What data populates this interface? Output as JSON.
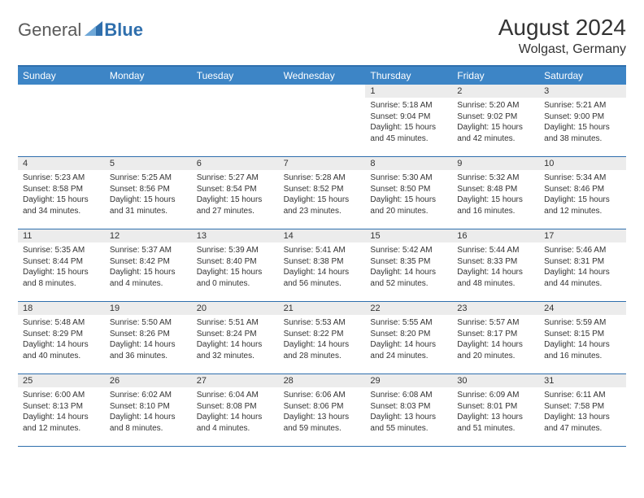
{
  "brand": {
    "general": "General",
    "blue": "Blue",
    "logo_color": "#2f6fad"
  },
  "title": "August 2024",
  "location": "Wolgast, Germany",
  "colors": {
    "header_bg": "#3d85c6",
    "header_text": "#ffffff",
    "border": "#2f6fad",
    "daynum_bg": "#ececec",
    "text": "#333333",
    "background": "#ffffff"
  },
  "day_labels": [
    "Sunday",
    "Monday",
    "Tuesday",
    "Wednesday",
    "Thursday",
    "Friday",
    "Saturday"
  ],
  "weeks": [
    [
      {
        "empty": true
      },
      {
        "empty": true
      },
      {
        "empty": true
      },
      {
        "empty": true
      },
      {
        "day": "1",
        "sunrise": "Sunrise: 5:18 AM",
        "sunset": "Sunset: 9:04 PM",
        "daylight": "Daylight: 15 hours and 45 minutes."
      },
      {
        "day": "2",
        "sunrise": "Sunrise: 5:20 AM",
        "sunset": "Sunset: 9:02 PM",
        "daylight": "Daylight: 15 hours and 42 minutes."
      },
      {
        "day": "3",
        "sunrise": "Sunrise: 5:21 AM",
        "sunset": "Sunset: 9:00 PM",
        "daylight": "Daylight: 15 hours and 38 minutes."
      }
    ],
    [
      {
        "day": "4",
        "sunrise": "Sunrise: 5:23 AM",
        "sunset": "Sunset: 8:58 PM",
        "daylight": "Daylight: 15 hours and 34 minutes."
      },
      {
        "day": "5",
        "sunrise": "Sunrise: 5:25 AM",
        "sunset": "Sunset: 8:56 PM",
        "daylight": "Daylight: 15 hours and 31 minutes."
      },
      {
        "day": "6",
        "sunrise": "Sunrise: 5:27 AM",
        "sunset": "Sunset: 8:54 PM",
        "daylight": "Daylight: 15 hours and 27 minutes."
      },
      {
        "day": "7",
        "sunrise": "Sunrise: 5:28 AM",
        "sunset": "Sunset: 8:52 PM",
        "daylight": "Daylight: 15 hours and 23 minutes."
      },
      {
        "day": "8",
        "sunrise": "Sunrise: 5:30 AM",
        "sunset": "Sunset: 8:50 PM",
        "daylight": "Daylight: 15 hours and 20 minutes."
      },
      {
        "day": "9",
        "sunrise": "Sunrise: 5:32 AM",
        "sunset": "Sunset: 8:48 PM",
        "daylight": "Daylight: 15 hours and 16 minutes."
      },
      {
        "day": "10",
        "sunrise": "Sunrise: 5:34 AM",
        "sunset": "Sunset: 8:46 PM",
        "daylight": "Daylight: 15 hours and 12 minutes."
      }
    ],
    [
      {
        "day": "11",
        "sunrise": "Sunrise: 5:35 AM",
        "sunset": "Sunset: 8:44 PM",
        "daylight": "Daylight: 15 hours and 8 minutes."
      },
      {
        "day": "12",
        "sunrise": "Sunrise: 5:37 AM",
        "sunset": "Sunset: 8:42 PM",
        "daylight": "Daylight: 15 hours and 4 minutes."
      },
      {
        "day": "13",
        "sunrise": "Sunrise: 5:39 AM",
        "sunset": "Sunset: 8:40 PM",
        "daylight": "Daylight: 15 hours and 0 minutes."
      },
      {
        "day": "14",
        "sunrise": "Sunrise: 5:41 AM",
        "sunset": "Sunset: 8:38 PM",
        "daylight": "Daylight: 14 hours and 56 minutes."
      },
      {
        "day": "15",
        "sunrise": "Sunrise: 5:42 AM",
        "sunset": "Sunset: 8:35 PM",
        "daylight": "Daylight: 14 hours and 52 minutes."
      },
      {
        "day": "16",
        "sunrise": "Sunrise: 5:44 AM",
        "sunset": "Sunset: 8:33 PM",
        "daylight": "Daylight: 14 hours and 48 minutes."
      },
      {
        "day": "17",
        "sunrise": "Sunrise: 5:46 AM",
        "sunset": "Sunset: 8:31 PM",
        "daylight": "Daylight: 14 hours and 44 minutes."
      }
    ],
    [
      {
        "day": "18",
        "sunrise": "Sunrise: 5:48 AM",
        "sunset": "Sunset: 8:29 PM",
        "daylight": "Daylight: 14 hours and 40 minutes."
      },
      {
        "day": "19",
        "sunrise": "Sunrise: 5:50 AM",
        "sunset": "Sunset: 8:26 PM",
        "daylight": "Daylight: 14 hours and 36 minutes."
      },
      {
        "day": "20",
        "sunrise": "Sunrise: 5:51 AM",
        "sunset": "Sunset: 8:24 PM",
        "daylight": "Daylight: 14 hours and 32 minutes."
      },
      {
        "day": "21",
        "sunrise": "Sunrise: 5:53 AM",
        "sunset": "Sunset: 8:22 PM",
        "daylight": "Daylight: 14 hours and 28 minutes."
      },
      {
        "day": "22",
        "sunrise": "Sunrise: 5:55 AM",
        "sunset": "Sunset: 8:20 PM",
        "daylight": "Daylight: 14 hours and 24 minutes."
      },
      {
        "day": "23",
        "sunrise": "Sunrise: 5:57 AM",
        "sunset": "Sunset: 8:17 PM",
        "daylight": "Daylight: 14 hours and 20 minutes."
      },
      {
        "day": "24",
        "sunrise": "Sunrise: 5:59 AM",
        "sunset": "Sunset: 8:15 PM",
        "daylight": "Daylight: 14 hours and 16 minutes."
      }
    ],
    [
      {
        "day": "25",
        "sunrise": "Sunrise: 6:00 AM",
        "sunset": "Sunset: 8:13 PM",
        "daylight": "Daylight: 14 hours and 12 minutes."
      },
      {
        "day": "26",
        "sunrise": "Sunrise: 6:02 AM",
        "sunset": "Sunset: 8:10 PM",
        "daylight": "Daylight: 14 hours and 8 minutes."
      },
      {
        "day": "27",
        "sunrise": "Sunrise: 6:04 AM",
        "sunset": "Sunset: 8:08 PM",
        "daylight": "Daylight: 14 hours and 4 minutes."
      },
      {
        "day": "28",
        "sunrise": "Sunrise: 6:06 AM",
        "sunset": "Sunset: 8:06 PM",
        "daylight": "Daylight: 13 hours and 59 minutes."
      },
      {
        "day": "29",
        "sunrise": "Sunrise: 6:08 AM",
        "sunset": "Sunset: 8:03 PM",
        "daylight": "Daylight: 13 hours and 55 minutes."
      },
      {
        "day": "30",
        "sunrise": "Sunrise: 6:09 AM",
        "sunset": "Sunset: 8:01 PM",
        "daylight": "Daylight: 13 hours and 51 minutes."
      },
      {
        "day": "31",
        "sunrise": "Sunrise: 6:11 AM",
        "sunset": "Sunset: 7:58 PM",
        "daylight": "Daylight: 13 hours and 47 minutes."
      }
    ]
  ]
}
